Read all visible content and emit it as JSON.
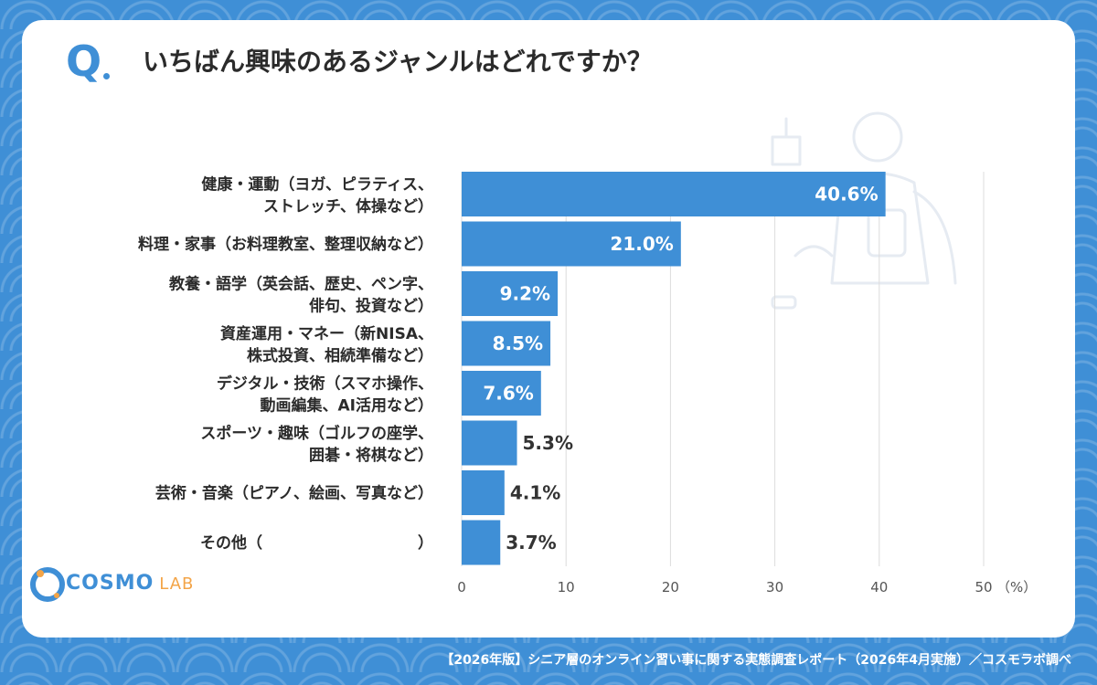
{
  "question": {
    "mark": "Q",
    "text": "いちばん興味のあるジャンルはどれですか？"
  },
  "logo": {
    "name": "COSMO",
    "suffix": "LAB"
  },
  "footer": "【2026年版】シニア層のオンライン習い事に関する実態調査レポート（2026年4月実施）／コスモラボ調べ",
  "colors": {
    "bar": "#3f8fd6",
    "background": "#3f8fd6",
    "accent": "#f3a447"
  },
  "chart_data": {
    "type": "bar",
    "orientation": "horizontal",
    "categories": [
      [
        "健康・運動（ヨガ、ピラティス、",
        "ストレッチ、体操など）"
      ],
      [
        "料理・家事（お料理教室、整理収納など）"
      ],
      [
        "教養・語学（英会話、歴史、ペン字、",
        "俳句、投資など）"
      ],
      [
        "資産運用・マネー（新NISA、",
        "株式投資、相続準備など）"
      ],
      [
        "デジタル・技術（スマホ操作、",
        "動画編集、AI活用など）"
      ],
      [
        "スポーツ・趣味（ゴルフの座学、",
        "囲碁・将棋など）"
      ],
      [
        "芸術・音楽（ピアノ、絵画、写真など）"
      ],
      [
        "その他（　　　　　　　　　　）"
      ]
    ],
    "values": [
      40.6,
      21.0,
      9.2,
      8.5,
      7.6,
      5.3,
      4.1,
      3.7
    ],
    "value_labels": [
      "40.6%",
      "21.0%",
      "9.2%",
      "8.5%",
      "7.6%",
      "5.3%",
      "4.1%",
      "3.7%"
    ],
    "xlim": [
      0,
      50
    ],
    "xticks": [
      "0",
      "10",
      "20",
      "30",
      "40",
      "50"
    ],
    "x_unit": "（%）",
    "grid": true
  }
}
